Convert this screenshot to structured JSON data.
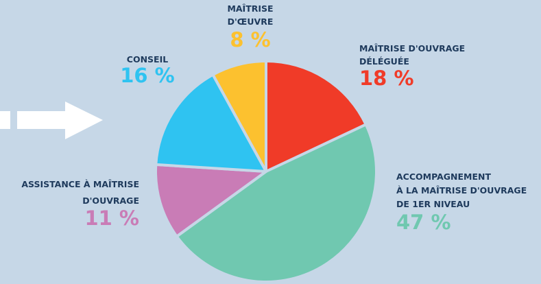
{
  "chart_data": {
    "type": "pie",
    "categories": [
      [
        "MAÎTRISE",
        "D'ŒUVRE"
      ],
      [
        "MAÎTRISE D'OUVRAGE",
        "DÉLÉGUÉE"
      ],
      [
        "ACCOMPAGNEMENT",
        "À LA MAÎTRISE D'OUVRAGE",
        "DE 1ER NIVEAU"
      ],
      [
        "ASSISTANCE À MAÎTRISE",
        "D'OUVRAGE"
      ],
      [
        "CONSEIL"
      ]
    ],
    "values": [
      8,
      18,
      47,
      11,
      16
    ],
    "value_labels": [
      "8 %",
      "18 %",
      "47 %",
      "11 %",
      "16 %"
    ],
    "colors": [
      "#fcc12f",
      "#f03b28",
      "#70c8b0",
      "#c97cb6",
      "#2fc3f1"
    ]
  }
}
